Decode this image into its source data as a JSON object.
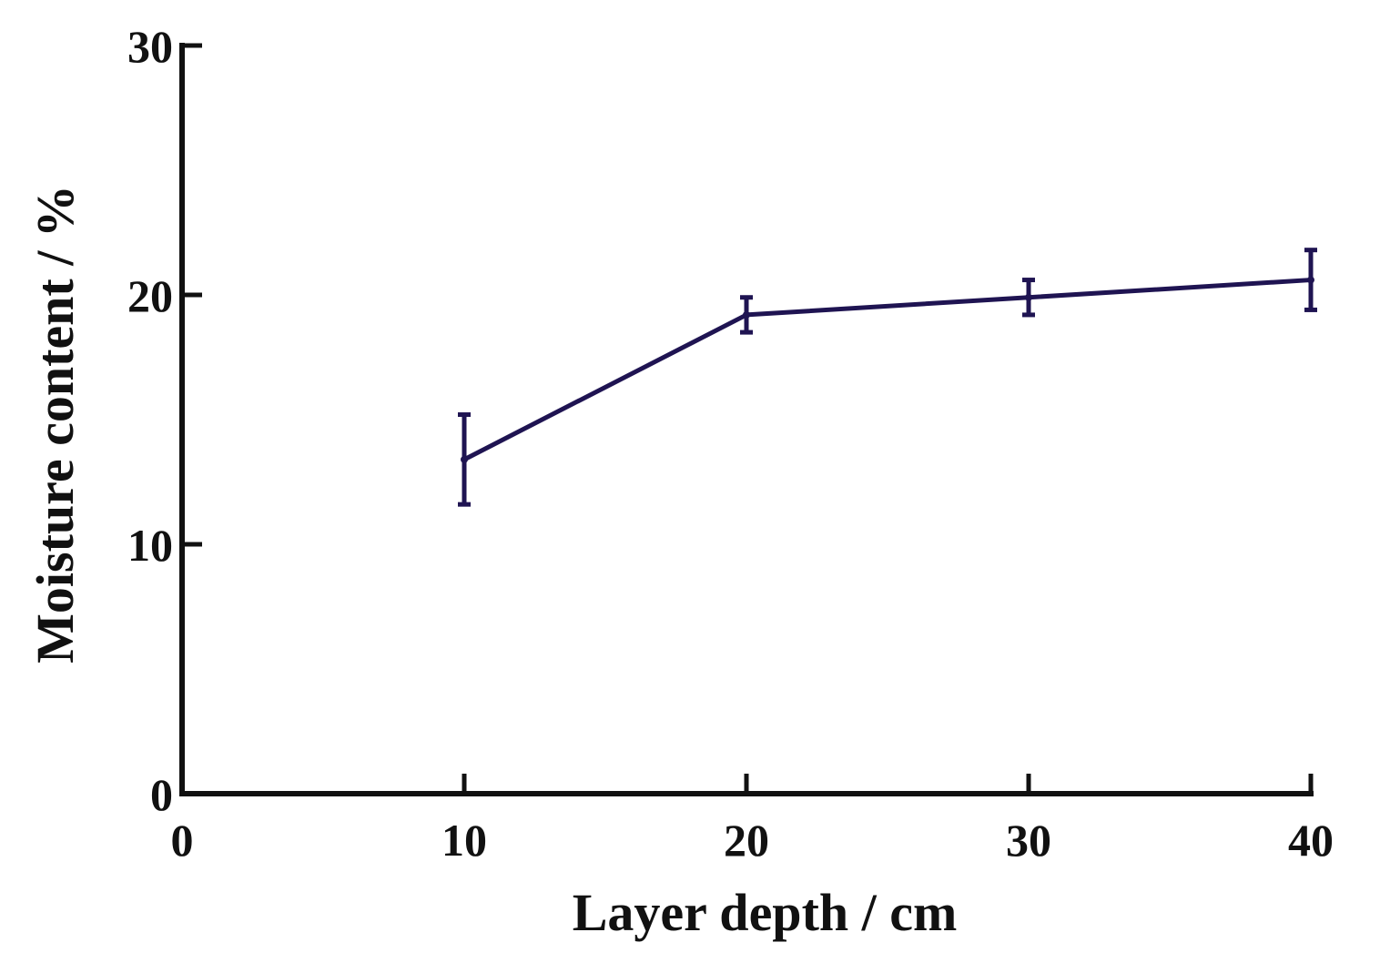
{
  "chart_data": {
    "type": "line",
    "title": "",
    "xlabel": "Layer depth / cm",
    "ylabel": "Moisture content / %",
    "xlim": [
      0,
      40
    ],
    "ylim": [
      0,
      30
    ],
    "xticks": [
      "0",
      "10",
      "20",
      "30",
      "40"
    ],
    "yticks": [
      "0",
      "10",
      "20",
      "30"
    ],
    "grid": false,
    "legend": "none",
    "series": [
      {
        "x": [
          10,
          20,
          30,
          40
        ],
        "y": [
          13.4,
          19.2,
          19.9,
          20.6
        ],
        "error": [
          1.8,
          0.7,
          0.7,
          1.2
        ],
        "color": "#1f1452"
      }
    ],
    "axis_color": "#111111"
  }
}
